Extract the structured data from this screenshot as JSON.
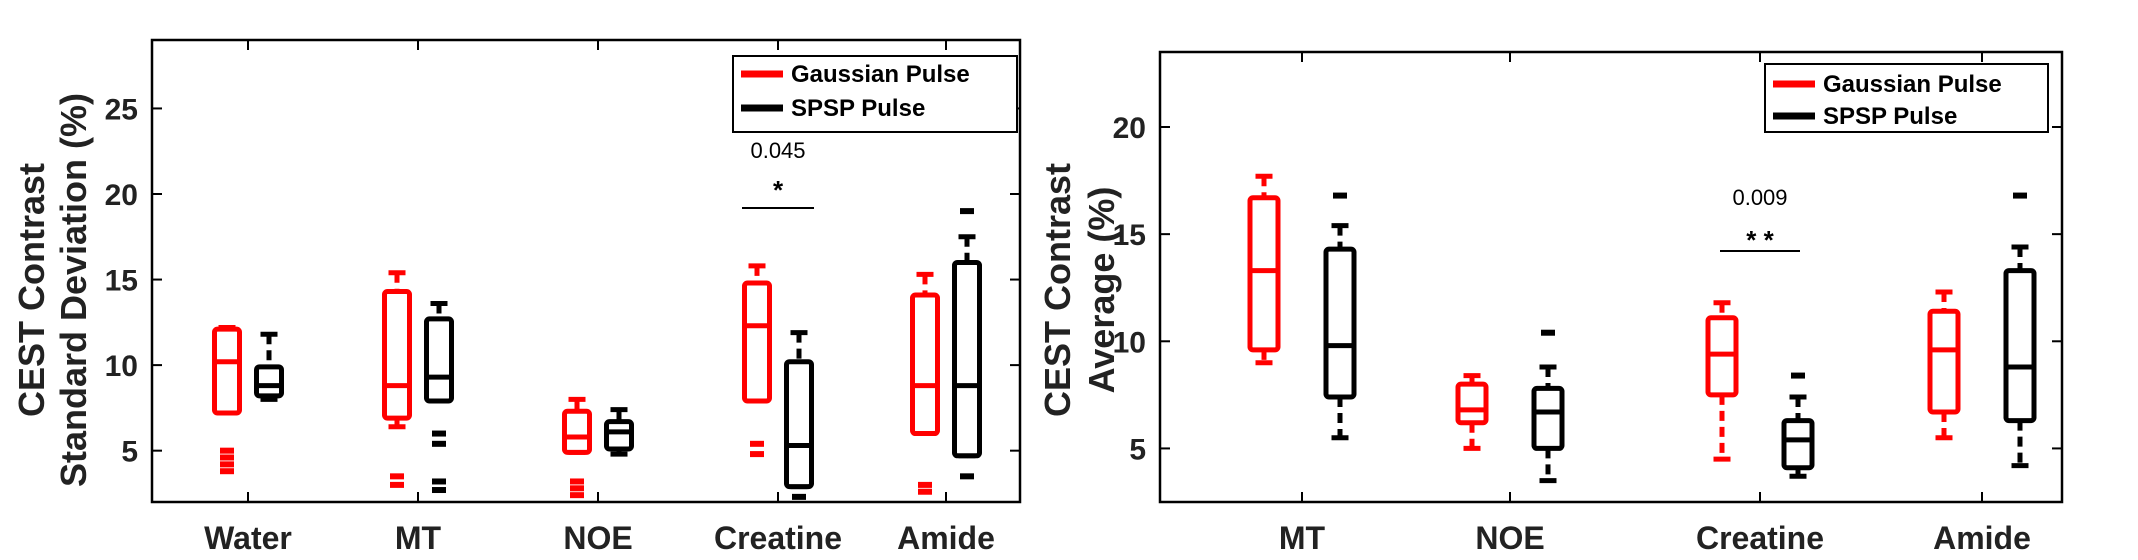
{
  "chart_data": [
    {
      "type": "boxplot",
      "ylabel": [
        "CEST Contrast",
        "Standard Deviation (%)"
      ],
      "ylim": [
        2,
        29
      ],
      "yticks": [
        5,
        10,
        15,
        20,
        25
      ],
      "categories": [
        "Water",
        "MT",
        "NOE",
        "Creatine",
        "Amide"
      ],
      "legend": [
        {
          "name": "Gaussian Pulse",
          "color": "#ff0000"
        },
        {
          "name": "SPSP Pulse",
          "color": "#000000"
        }
      ],
      "series": [
        {
          "name": "Gaussian Pulse",
          "color": "#ff0000",
          "boxes": [
            {
              "lower_whisker": 7.2,
              "q1": 7.2,
              "median": 10.2,
              "q3": 12.1,
              "upper_whisker": 12.2,
              "outliers": [
                3.8,
                4.2,
                4.6,
                5.0
              ]
            },
            {
              "lower_whisker": 6.4,
              "q1": 6.9,
              "median": 8.8,
              "q3": 14.3,
              "upper_whisker": 15.4,
              "outliers": [
                3.0,
                3.5
              ]
            },
            {
              "lower_whisker": 4.9,
              "q1": 4.9,
              "median": 5.8,
              "q3": 7.3,
              "upper_whisker": 8.0,
              "outliers": [
                2.4,
                2.8,
                3.2
              ]
            },
            {
              "lower_whisker": 7.9,
              "q1": 7.9,
              "median": 12.3,
              "q3": 14.8,
              "upper_whisker": 15.8,
              "outliers": [
                4.8,
                5.4
              ]
            },
            {
              "lower_whisker": 6.0,
              "q1": 6.0,
              "median": 8.8,
              "q3": 14.1,
              "upper_whisker": 15.3,
              "outliers": [
                2.6,
                3.0
              ]
            }
          ]
        },
        {
          "name": "SPSP Pulse",
          "color": "#000000",
          "boxes": [
            {
              "lower_whisker": 8.0,
              "q1": 8.2,
              "median": 8.8,
              "q3": 9.9,
              "upper_whisker": 11.8,
              "outliers": []
            },
            {
              "lower_whisker": 7.9,
              "q1": 7.9,
              "median": 9.3,
              "q3": 12.7,
              "upper_whisker": 13.6,
              "outliers": [
                6.0,
                5.4,
                2.7,
                3.2
              ]
            },
            {
              "lower_whisker": 4.8,
              "q1": 5.1,
              "median": 6.1,
              "q3": 6.7,
              "upper_whisker": 7.4,
              "outliers": []
            },
            {
              "lower_whisker": 2.9,
              "q1": 2.9,
              "median": 5.3,
              "q3": 10.2,
              "upper_whisker": 11.9,
              "outliers": [
                2.3
              ]
            },
            {
              "lower_whisker": 4.7,
              "q1": 4.7,
              "median": 8.8,
              "q3": 16.0,
              "upper_whisker": 17.5,
              "outliers": [
                19.0,
                3.5
              ]
            }
          ]
        }
      ],
      "annotations": [
        {
          "category": "Creatine",
          "p_value": "0.045",
          "stars": "*"
        }
      ]
    },
    {
      "type": "boxplot",
      "ylabel": [
        "CEST Contrast",
        "Average (%)"
      ],
      "ylim": [
        2.5,
        23.5
      ],
      "yticks": [
        5,
        10,
        15,
        20
      ],
      "categories": [
        "MT",
        "NOE",
        "Creatine",
        "Amide"
      ],
      "legend": [
        {
          "name": "Gaussian Pulse",
          "color": "#ff0000"
        },
        {
          "name": "SPSP Pulse",
          "color": "#000000"
        }
      ],
      "series": [
        {
          "name": "Gaussian Pulse",
          "color": "#ff0000",
          "boxes": [
            {
              "lower_whisker": 9.0,
              "q1": 9.6,
              "median": 13.3,
              "q3": 16.7,
              "upper_whisker": 17.7,
              "outliers": []
            },
            {
              "lower_whisker": 5.0,
              "q1": 6.2,
              "median": 6.8,
              "q3": 8.0,
              "upper_whisker": 8.4,
              "outliers": []
            },
            {
              "lower_whisker": 4.5,
              "q1": 7.5,
              "median": 9.4,
              "q3": 11.1,
              "upper_whisker": 11.8,
              "outliers": []
            },
            {
              "lower_whisker": 5.5,
              "q1": 6.7,
              "median": 9.6,
              "q3": 11.4,
              "upper_whisker": 12.3,
              "outliers": []
            }
          ]
        },
        {
          "name": "SPSP Pulse",
          "color": "#000000",
          "boxes": [
            {
              "lower_whisker": 5.5,
              "q1": 7.4,
              "median": 9.8,
              "q3": 14.3,
              "upper_whisker": 15.4,
              "outliers": [
                16.8
              ]
            },
            {
              "lower_whisker": 3.5,
              "q1": 5.0,
              "median": 6.7,
              "q3": 7.8,
              "upper_whisker": 8.8,
              "outliers": [
                10.4
              ]
            },
            {
              "lower_whisker": 3.7,
              "q1": 4.1,
              "median": 5.4,
              "q3": 6.3,
              "upper_whisker": 7.4,
              "outliers": [
                8.4
              ]
            },
            {
              "lower_whisker": 4.2,
              "q1": 6.3,
              "median": 8.8,
              "q3": 13.3,
              "upper_whisker": 14.4,
              "outliers": [
                16.8
              ]
            }
          ]
        }
      ],
      "annotations": [
        {
          "category": "Creatine",
          "p_value": "0.009",
          "stars": "* *"
        }
      ]
    }
  ]
}
